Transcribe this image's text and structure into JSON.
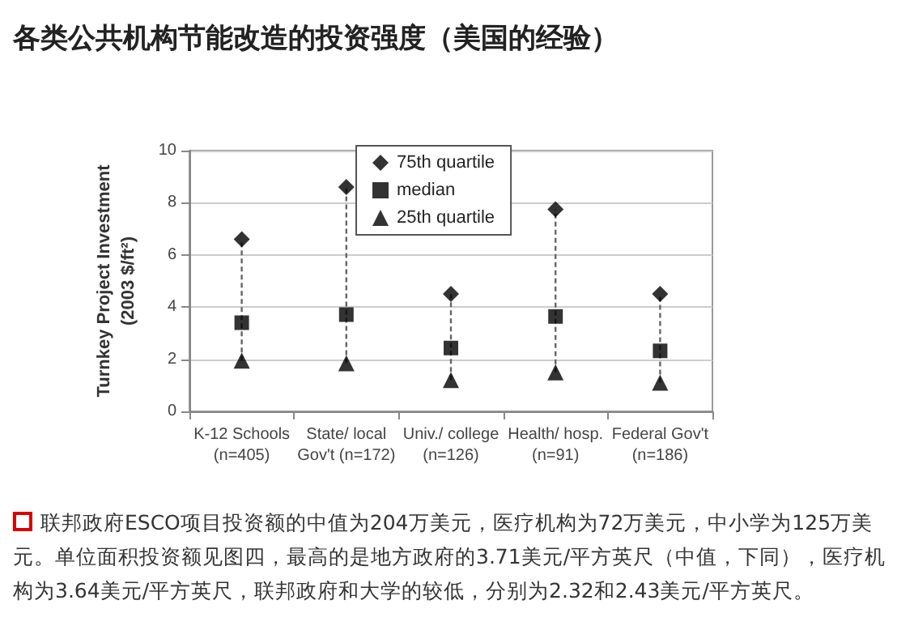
{
  "chart_data": {
    "type": "scatter",
    "title": "各类公共机构节能改造的投资强度（美国的经验）",
    "ylabel": "Turnkey Project Investment\n(2003 $/ft²)",
    "categories": [
      "K-12 Schools\n(n=405)",
      "State/ local\nGov't (n=172)",
      "Univ./ college\n(n=126)",
      "Health/ hosp.\n(n=91)",
      "Federal Gov't\n(n=186)"
    ],
    "series": [
      {
        "name": "75th quartile",
        "color": "#000000",
        "marker": "diamond",
        "values": [
          6.6,
          8.6,
          4.5,
          7.75,
          4.5
        ]
      },
      {
        "name": "median",
        "color": "#000000",
        "marker": "square",
        "values": [
          3.4,
          3.71,
          2.43,
          3.64,
          2.32
        ]
      },
      {
        "name": "25th quartile",
        "color": "#000000",
        "marker": "triangle",
        "values": [
          1.95,
          1.85,
          1.2,
          1.5,
          1.1
        ]
      }
    ],
    "ylim": [
      0,
      10
    ],
    "yticks": [
      0,
      2,
      4,
      6,
      8,
      10
    ],
    "grid": "y",
    "legend": "top",
    "line_style": "dashed",
    "annotations": [
      "联邦政府ESCO项目投资额的中值为204万美元，医疗机构为72万美元，中小学为125万美元。单位面积投资额见图四，最高的是地方政府的3.71美元/平方英尺（中值，下同），医疗机构为3.64美元/平方英尺，联邦政府和大学的较低，分别为2.32和2.43美元/平方英尺。"
    ]
  }
}
